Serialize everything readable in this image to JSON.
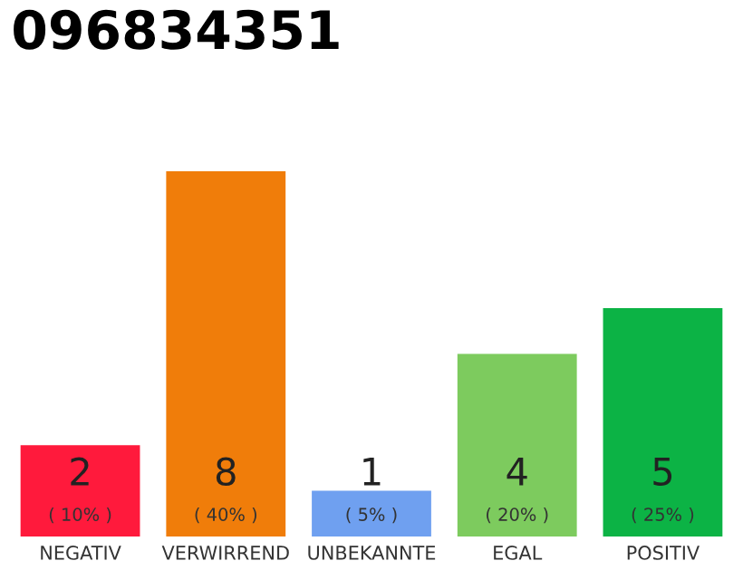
{
  "chart_data": {
    "type": "bar",
    "title": "096834351",
    "categories": [
      "NEGATIV",
      "VERWIRREND",
      "UNBEKANNTE",
      "EGAL",
      "POSITIV"
    ],
    "values": [
      2,
      8,
      1,
      4,
      5
    ],
    "colors": [
      "#ff1a3c",
      "#f07d0a",
      "#6fa0f0",
      "#7dcb5e",
      "#0cb345"
    ],
    "ylim": [
      0,
      8
    ],
    "data_labels": true,
    "annotations": [
      "( 10% )",
      "( 40% )",
      "( 5% )",
      "( 20% )",
      "( 25% )"
    ],
    "tick_labels": "x"
  }
}
